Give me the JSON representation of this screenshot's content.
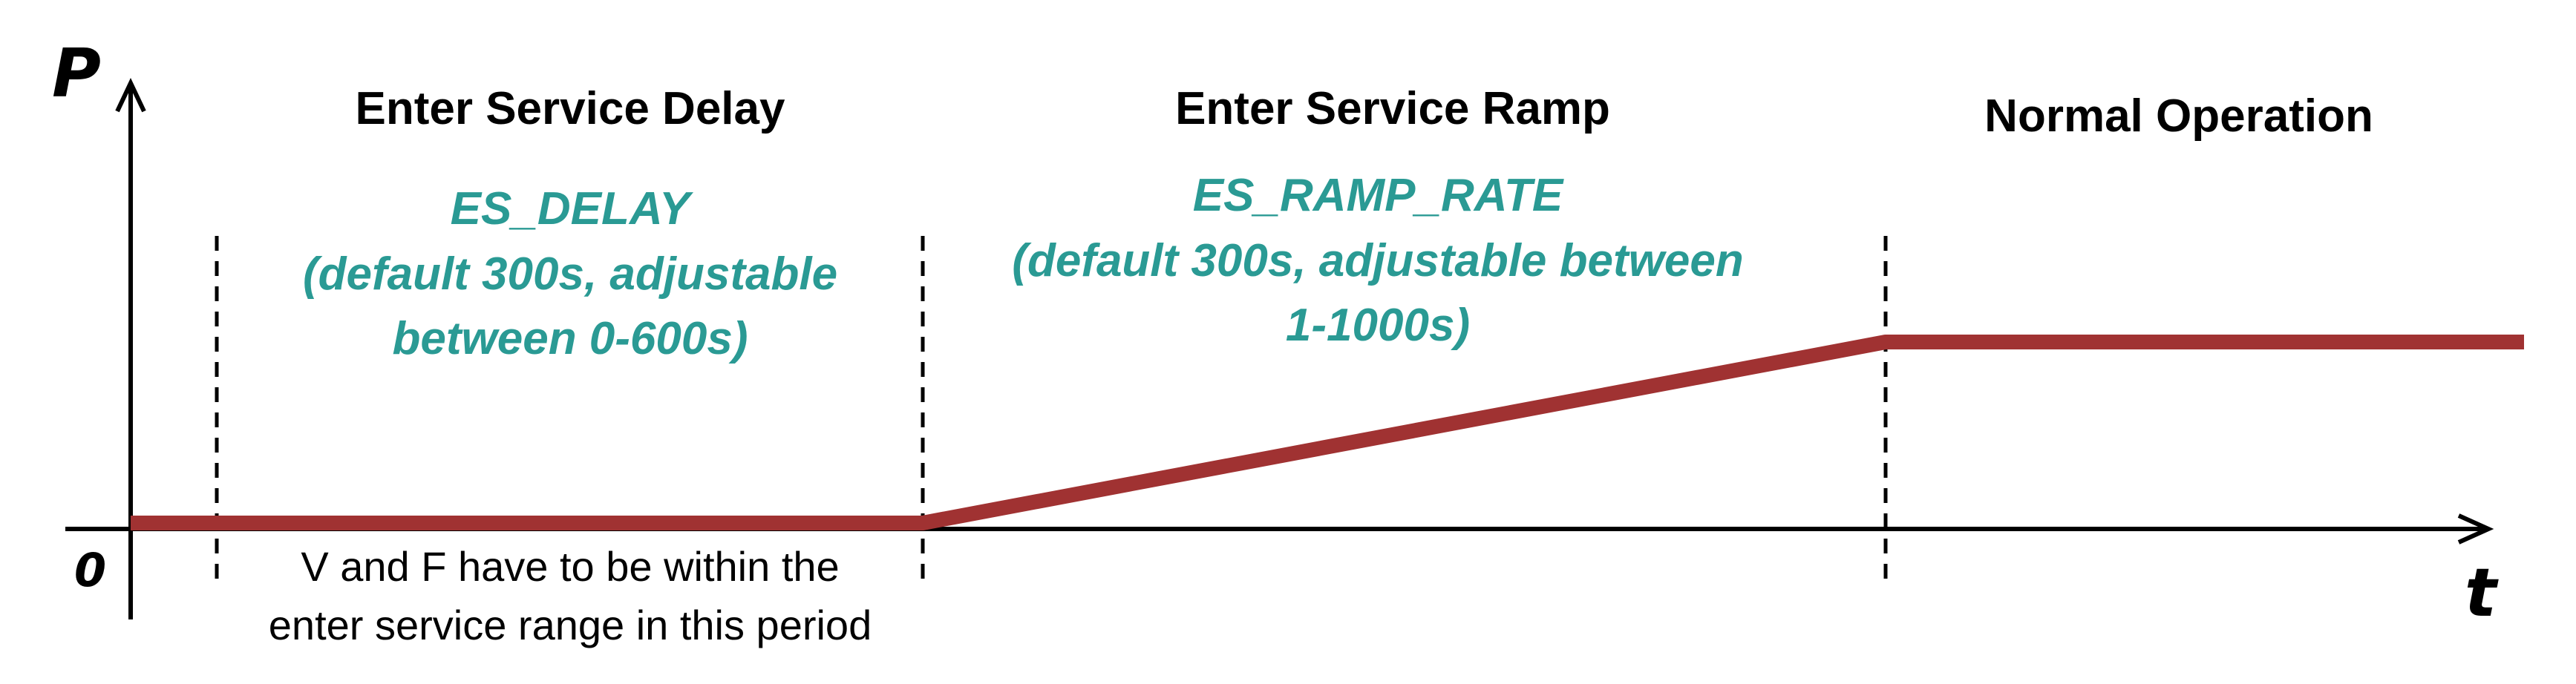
{
  "axes": {
    "y_label": "P",
    "x_label": "t",
    "origin_label": "0"
  },
  "phases": [
    {
      "title": "Enter Service Delay",
      "parameter_lines": [
        "ES_DELAY",
        "(default 300s, adjustable",
        "between 0-600s)"
      ],
      "note_lines": [
        "V and F have to be within the",
        "enter service range in this period"
      ]
    },
    {
      "title": "Enter Service Ramp",
      "parameter_lines": [
        "ES_RAMP_RATE",
        "(default 300s, adjustable between",
        "1-1000s)"
      ]
    },
    {
      "title": "Normal Operation"
    }
  ],
  "colors": {
    "power_curve": "#a03232",
    "parameter_text": "#2a9a94",
    "axis": "#000000"
  }
}
